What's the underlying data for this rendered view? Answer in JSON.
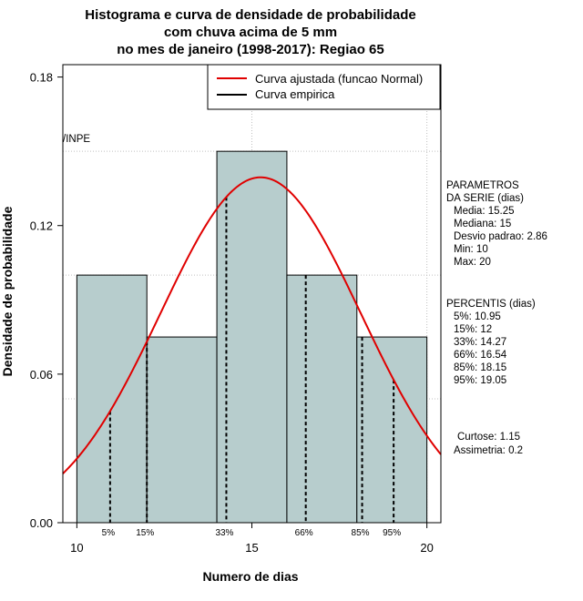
{
  "chart_data": {
    "type": "histogram",
    "title_lines": [
      "Histograma e curva de densidade de probabilidade",
      "com chuva acima de 5 mm",
      "no mes de janeiro (1998-2017): Regiao 65"
    ],
    "xlabel": "Numero de dias",
    "ylabel": "Densidade de probabilidade",
    "xlim": [
      9.6,
      20.4
    ],
    "ylim": [
      0,
      0.185
    ],
    "x_ticks": [
      10,
      15,
      20
    ],
    "y_ticks": [
      "0.00",
      "0.06",
      "0.12",
      "0.18"
    ],
    "y_tick_values": [
      0,
      0.06,
      0.12,
      0.18
    ],
    "grid": true,
    "grid_x": [
      15,
      20
    ],
    "grid_y": [
      0.05,
      0.1,
      0.15
    ],
    "watermark": "/INPE",
    "bins": [
      {
        "start": 10,
        "end": 12,
        "density": 0.1
      },
      {
        "start": 12,
        "end": 14,
        "density": 0.075
      },
      {
        "start": 14,
        "end": 16,
        "density": 0.15
      },
      {
        "start": 16,
        "end": 18,
        "density": 0.1
      },
      {
        "start": 18,
        "end": 20,
        "density": 0.075
      }
    ],
    "normal_curve": {
      "mean": 15.25,
      "sd": 2.86,
      "color": "#e00000"
    },
    "bar_color": "#b7cdcd",
    "legend": {
      "position": "top-right",
      "entries": [
        {
          "label": "Curva ajustada (funcao Normal)",
          "color": "#e00000"
        },
        {
          "label": "Curva empirica",
          "color": "#000000"
        }
      ]
    },
    "percentiles": [
      {
        "label": "5%",
        "x": 10.95
      },
      {
        "label": "15%",
        "x": 12
      },
      {
        "label": "33%",
        "x": 14.27
      },
      {
        "label": "66%",
        "x": 16.54
      },
      {
        "label": "85%",
        "x": 18.15
      },
      {
        "label": "95%",
        "x": 19.05
      }
    ],
    "parametros": {
      "heading": [
        "PARAMETROS",
        "DA SERIE (dias)"
      ],
      "lines": [
        "Media: 15.25",
        "Mediana: 15",
        "Desvio padrao: 2.86",
        "Min: 10",
        "Max: 20"
      ]
    },
    "percentis_box": {
      "heading": "PERCENTIS (dias)",
      "lines": [
        "5%: 10.95",
        "15%: 12",
        "33%: 14.27",
        "66%: 16.54",
        "85%: 18.15",
        "95%: 19.05"
      ]
    },
    "stats": [
      "Curtose: 1.15",
      "Assimetria: 0.2"
    ]
  }
}
